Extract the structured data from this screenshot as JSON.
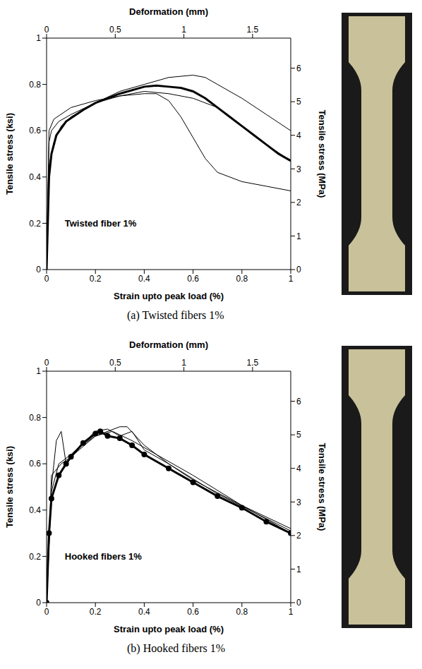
{
  "chart_data": [
    {
      "type": "line",
      "title": "(a) Twisted fibers 1%",
      "annotations": [
        "Twisted fiber 1%"
      ],
      "xlabel": "Strain upto peak load (%)",
      "x2label": "Deformation (mm)",
      "ylabel": "Tensile stress (ksi)",
      "y2label": "Tensile stress (MPa)",
      "xlim": [
        0,
        1
      ],
      "xticks": [
        0,
        0.2,
        0.4,
        0.6,
        0.8,
        1
      ],
      "x2lim": [
        0,
        1.778
      ],
      "x2ticks": [
        0,
        0.5,
        1,
        1.5
      ],
      "ylim": [
        0,
        1
      ],
      "yticks": [
        0,
        0.2,
        0.4,
        0.6,
        0.8,
        1
      ],
      "y2lim": [
        0,
        6.895
      ],
      "y2ticks": [
        0,
        1,
        2,
        3,
        4,
        5,
        6
      ],
      "series": [
        {
          "color": "#000000",
          "line_style": "thin",
          "x": [
            0,
            0.01,
            0.02,
            0.05,
            0.1,
            0.2,
            0.3,
            0.4,
            0.5,
            0.6,
            0.65,
            0.7,
            0.8,
            0.9,
            1
          ],
          "values": [
            0,
            0.55,
            0.6,
            0.64,
            0.67,
            0.72,
            0.77,
            0.8,
            0.83,
            0.84,
            0.83,
            0.8,
            0.74,
            0.67,
            0.6
          ]
        },
        {
          "color": "#000000",
          "line_style": "thin",
          "x": [
            0,
            0.01,
            0.03,
            0.1,
            0.2,
            0.3,
            0.4,
            0.45,
            0.5,
            0.55,
            0.6,
            0.65,
            0.7,
            0.8,
            0.9,
            1
          ],
          "values": [
            0,
            0.6,
            0.65,
            0.7,
            0.73,
            0.75,
            0.76,
            0.76,
            0.73,
            0.66,
            0.57,
            0.48,
            0.42,
            0.38,
            0.36,
            0.34
          ]
        },
        {
          "color": "#000000",
          "line_style": "thin",
          "x": [
            0,
            0.01,
            0.03,
            0.06,
            0.1,
            0.2,
            0.3,
            0.4,
            0.5,
            0.6,
            0.7,
            0.8,
            0.9,
            1
          ],
          "values": [
            0,
            0.45,
            0.55,
            0.62,
            0.66,
            0.72,
            0.75,
            0.77,
            0.76,
            0.74,
            0.7,
            0.62,
            0.54,
            0.47
          ]
        },
        {
          "color": "#000000",
          "line_style": "thick",
          "x": [
            0,
            0.01,
            0.02,
            0.04,
            0.08,
            0.15,
            0.2,
            0.3,
            0.4,
            0.45,
            0.5,
            0.55,
            0.6,
            0.65,
            0.7,
            0.75,
            0.8,
            0.85,
            0.9,
            0.95,
            1
          ],
          "values": [
            0,
            0.4,
            0.5,
            0.58,
            0.64,
            0.69,
            0.72,
            0.76,
            0.79,
            0.795,
            0.79,
            0.785,
            0.77,
            0.74,
            0.7,
            0.66,
            0.62,
            0.58,
            0.54,
            0.5,
            0.47
          ]
        }
      ]
    },
    {
      "type": "line",
      "title": "(b) Hooked fibers 1%",
      "annotations": [
        "Hooked fibers 1%"
      ],
      "xlabel": "Strain upto peak load (%)",
      "x2label": "Deformation (mm)",
      "ylabel": "Tensile stress (ksi)",
      "y2label": "Tensile stress (MPa)",
      "xlim": [
        0,
        1
      ],
      "xticks": [
        0,
        0.2,
        0.4,
        0.6,
        0.8,
        1
      ],
      "x2lim": [
        0,
        1.778
      ],
      "x2ticks": [
        0,
        0.5,
        1,
        1.5
      ],
      "ylim": [
        0,
        1
      ],
      "yticks": [
        0,
        0.2,
        0.4,
        0.6,
        0.8,
        1
      ],
      "y2lim": [
        0,
        6.895
      ],
      "y2ticks": [
        0,
        1,
        2,
        3,
        4,
        5,
        6
      ],
      "series": [
        {
          "color": "#000000",
          "line_style": "thin",
          "x": [
            0,
            0.02,
            0.04,
            0.06,
            0.08,
            0.12,
            0.2,
            0.3,
            0.33,
            0.4,
            0.5,
            0.6,
            0.8,
            1
          ],
          "values": [
            0,
            0.5,
            0.7,
            0.74,
            0.6,
            0.66,
            0.72,
            0.76,
            0.76,
            0.68,
            0.6,
            0.53,
            0.42,
            0.32
          ]
        },
        {
          "color": "#000000",
          "line_style": "thin",
          "x": [
            0,
            0.02,
            0.05,
            0.1,
            0.2,
            0.25,
            0.3,
            0.35,
            0.4,
            0.5,
            0.7,
            1
          ],
          "values": [
            0,
            0.48,
            0.6,
            0.64,
            0.74,
            0.75,
            0.72,
            0.74,
            0.66,
            0.6,
            0.47,
            0.31
          ]
        },
        {
          "color": "#000000",
          "line_style": "thin",
          "x": [
            0,
            0.02,
            0.06,
            0.1,
            0.2,
            0.27,
            0.35,
            0.45,
            0.6,
            0.8,
            1
          ],
          "values": [
            0,
            0.55,
            0.6,
            0.63,
            0.72,
            0.74,
            0.7,
            0.64,
            0.55,
            0.42,
            0.3
          ]
        },
        {
          "color": "#000000",
          "line_style": "thick",
          "marker": "circle",
          "x": [
            0,
            0.01,
            0.02,
            0.05,
            0.08,
            0.1,
            0.15,
            0.2,
            0.22,
            0.25,
            0.3,
            0.35,
            0.4,
            0.5,
            0.6,
            0.7,
            0.8,
            0.9,
            1
          ],
          "values": [
            0,
            0.3,
            0.45,
            0.55,
            0.6,
            0.63,
            0.69,
            0.73,
            0.74,
            0.72,
            0.71,
            0.68,
            0.64,
            0.58,
            0.52,
            0.46,
            0.41,
            0.35,
            0.3
          ]
        }
      ]
    }
  ]
}
